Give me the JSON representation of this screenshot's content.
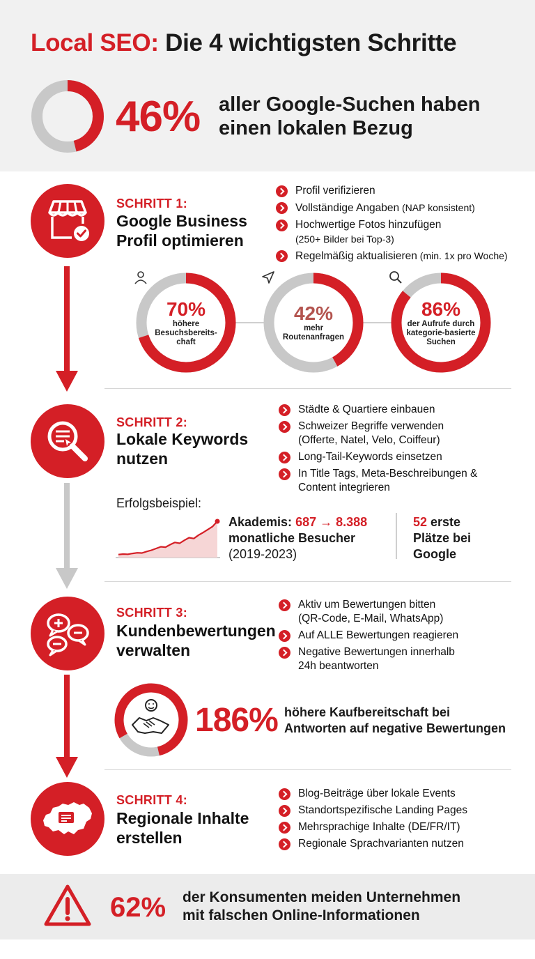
{
  "header": {
    "title_red": "Local SEO:",
    "title_rest": " Die 4 wichtigsten Schritte",
    "hero": {
      "percent": "46%",
      "line1": "aller Google-Suchen haben",
      "line2": "einen lokalen Bezug",
      "fraction": 0.46
    }
  },
  "step1": {
    "label": "SCHRITT 1:",
    "title1": "Google Business",
    "title2": "Profil optimieren",
    "icon": "storefront-check-icon",
    "bullets": [
      {
        "text": "Profil verifizieren",
        "note": "",
        "note2": ""
      },
      {
        "text": "Vollständige Angaben",
        "note": " (NAP konsistent)",
        "note2": ""
      },
      {
        "text": "Hochwertige Fotos hinzufügen",
        "note": "",
        "note2": "(250+ Bilder bei Top-3)"
      },
      {
        "text": "Regelmäßig aktualisieren",
        "note": " (min. 1x pro Woche)",
        "note2": ""
      }
    ],
    "stats": [
      {
        "icon": "person-icon",
        "percent": "70%",
        "desc1": "höhere",
        "desc2": "Besuchsbereits-",
        "desc3": "chaft",
        "fraction": 0.7
      },
      {
        "icon": "navigation-arrow-icon",
        "percent": "42%",
        "desc1": "mehr",
        "desc2": "Routenanfragen",
        "desc3": "",
        "fraction": 0.42
      },
      {
        "icon": "search-icon",
        "percent": "86%",
        "desc1": "der Aufrufe durch",
        "desc2": "kategorie-basierte",
        "desc3": "Suchen",
        "fraction": 0.86
      }
    ]
  },
  "step2": {
    "label": "SCHRITT 2:",
    "title1": "Lokale Keywords",
    "title2": "nutzen",
    "icon": "magnifier-document-icon",
    "bullets": [
      {
        "text": "Städte & Quartiere einbauen",
        "line2": ""
      },
      {
        "text": "Schweizer Begriffe verwenden",
        "line2": "(Offerte, Natel, Velo, Coiffeur)"
      },
      {
        "text": "Long-Tail-Keywords einsetzen",
        "line2": ""
      },
      {
        "text": "In Title Tags, Meta-Beschreibungen &",
        "line2": "Content integrieren"
      }
    ],
    "example": {
      "label": "Erfolgsbeispiel:",
      "name": "Akademis:",
      "from": "687",
      "arrow": "→",
      "to": "8.388",
      "line2": "monatliche Besucher",
      "period": "(2019-2023)",
      "side_num": "52",
      "side1": " erste",
      "side2": "Plätze bei",
      "side3": "Google",
      "trend": [
        687,
        800,
        760,
        950,
        1100,
        1050,
        1400,
        1700,
        2100,
        2500,
        2400,
        3000,
        3500,
        3300,
        4000,
        4600,
        4400,
        5200,
        5800,
        6500,
        7200,
        8388
      ]
    }
  },
  "step3": {
    "label": "SCHRITT 3:",
    "title1": "Kundenbewertungen",
    "title2": "verwalten",
    "icon": "speech-bubbles-icon",
    "bullets": [
      {
        "text": "Aktiv um Bewertungen bitten",
        "line2": "(QR-Code, E-Mail, WhatsApp)"
      },
      {
        "text": "Auf ALLE Bewertungen reagieren",
        "line2": ""
      },
      {
        "text": "Negative Bewertungen innerhalb",
        "line2": "24h beantworten"
      }
    ],
    "stat": {
      "percent": "186%",
      "line1": "höhere Kaufbereitschaft bei",
      "line2": "Antworten auf negative Bewertungen",
      "icon": "handshake-icon"
    }
  },
  "step4": {
    "label": "SCHRITT 4:",
    "title1": "Regionale Inhalte",
    "title2": "erstellen",
    "icon": "switzerland-map-icon",
    "bullets": [
      {
        "text": "Blog-Beiträge über lokale Events"
      },
      {
        "text": "Standortspezifische Landing Pages"
      },
      {
        "text": "Mehrsprachige Inhalte (DE/FR/IT)"
      },
      {
        "text": "Regionale Sprachvarianten nutzen"
      }
    ]
  },
  "footer": {
    "percent": "62%",
    "line1": "der Konsumenten meiden Unternehmen",
    "line2": "mit falschen Online-Informationen",
    "icon": "warning-icon"
  },
  "colors": {
    "accent": "#d41f26",
    "ring_bg": "#c8c8c8",
    "muted_red": "#b3544f"
  }
}
